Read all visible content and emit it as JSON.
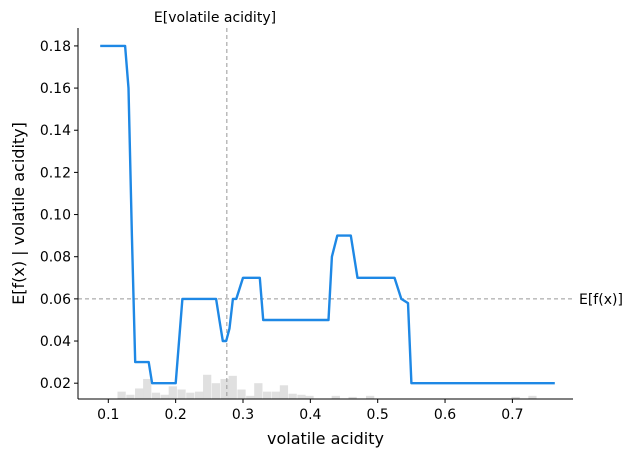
{
  "chart_data": {
    "type": "line",
    "xlabel": "volatile acidity",
    "ylabel": "E[f(x) | volatile acidity]",
    "xlim": [
      0.055,
      0.79
    ],
    "ylim": [
      0.0125,
      0.1885
    ],
    "x_ticks": [
      0.1,
      0.2,
      0.3,
      0.4,
      0.5,
      0.6,
      0.7
    ],
    "x_tick_labels": [
      "0.1",
      "0.2",
      "0.3",
      "0.4",
      "0.5",
      "0.6",
      "0.7"
    ],
    "y_ticks": [
      0.02,
      0.04,
      0.06,
      0.08,
      0.1,
      0.12,
      0.14,
      0.16,
      0.18
    ],
    "y_tick_labels": [
      "0.02",
      "0.04",
      "0.06",
      "0.08",
      "0.10",
      "0.12",
      "0.14",
      "0.16",
      "0.18"
    ],
    "grid": false,
    "series": [
      {
        "color": "#1e88e5",
        "x": [
          0.088,
          0.125,
          0.13,
          0.135,
          0.14,
          0.16,
          0.165,
          0.2,
          0.21,
          0.26,
          0.265,
          0.27,
          0.275,
          0.28,
          0.285,
          0.29,
          0.3,
          0.315,
          0.31,
          0.325,
          0.33,
          0.37,
          0.42,
          0.427,
          0.432,
          0.44,
          0.46,
          0.47,
          0.5,
          0.525,
          0.535,
          0.545,
          0.55,
          0.6,
          0.7,
          0.763
        ],
        "y": [
          0.18,
          0.18,
          0.16,
          0.09,
          0.03,
          0.03,
          0.02,
          0.02,
          0.06,
          0.06,
          0.05,
          0.04,
          0.04,
          0.046,
          0.06,
          0.06,
          0.07,
          0.07,
          0.07,
          0.07,
          0.05,
          0.05,
          0.05,
          0.05,
          0.08,
          0.09,
          0.09,
          0.07,
          0.07,
          0.07,
          0.06,
          0.058,
          0.02,
          0.02,
          0.02,
          0.02
        ]
      }
    ],
    "histogram": {
      "color": "#cccccc",
      "bin_width": 0.0127,
      "x": [
        0.12,
        0.133,
        0.146,
        0.158,
        0.171,
        0.184,
        0.196,
        0.209,
        0.222,
        0.235,
        0.247,
        0.26,
        0.273,
        0.285,
        0.298,
        0.311,
        0.323,
        0.336,
        0.349,
        0.361,
        0.374,
        0.387,
        0.399,
        0.438,
        0.463,
        0.489,
        0.705,
        0.73
      ],
      "density": [
        0.0035,
        0.002,
        0.005,
        0.0095,
        0.003,
        0.002,
        0.006,
        0.0045,
        0.003,
        0.0035,
        0.0115,
        0.0075,
        0.0095,
        0.011,
        0.0045,
        0.0015,
        0.0075,
        0.0035,
        0.0035,
        0.0065,
        0.0025,
        0.002,
        0.0015,
        0.0015,
        0.001,
        0.0015,
        0.001,
        0.0015
      ]
    },
    "reference_lines": [
      {
        "orientation": "vertical",
        "value": 0.276,
        "label": "E[volatile acidity]"
      },
      {
        "orientation": "horizontal",
        "value": 0.06,
        "label": "E[f(x)]"
      }
    ]
  }
}
